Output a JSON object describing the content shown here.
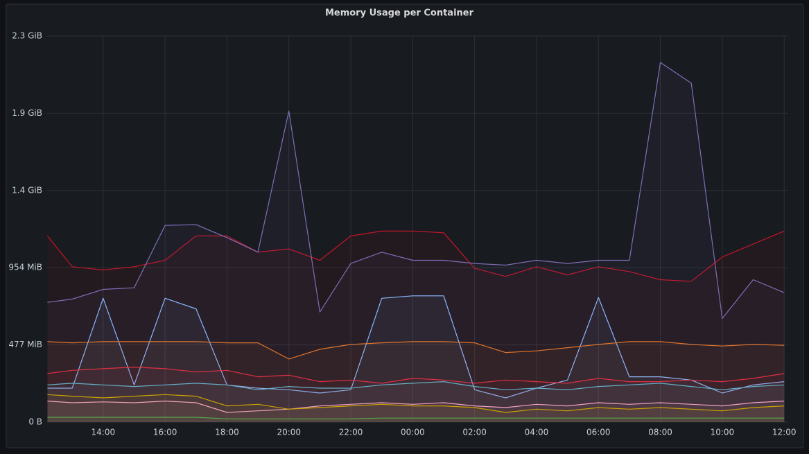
{
  "chart_data": {
    "type": "line",
    "title": "Memory Usage per Container",
    "x": [
      12.2,
      13,
      14,
      15,
      16,
      17,
      18,
      19,
      20,
      21,
      22,
      23,
      24,
      25,
      26,
      27,
      28,
      29,
      30,
      31,
      32,
      33,
      34,
      35,
      36
    ],
    "xlim": [
      12.19,
      36.13
    ],
    "xticks": [
      {
        "value": 14,
        "label": "14:00"
      },
      {
        "value": 16,
        "label": "16:00"
      },
      {
        "value": 18,
        "label": "18:00"
      },
      {
        "value": 20,
        "label": "20:00"
      },
      {
        "value": 22,
        "label": "22:00"
      },
      {
        "value": 24,
        "label": "00:00"
      },
      {
        "value": 26,
        "label": "02:00"
      },
      {
        "value": 28,
        "label": "04:00"
      },
      {
        "value": 30,
        "label": "06:00"
      },
      {
        "value": 32,
        "label": "08:00"
      },
      {
        "value": 34,
        "label": "10:00"
      },
      {
        "value": 36,
        "label": "12:00"
      }
    ],
    "ylim": [
      0,
      2385
    ],
    "yticks": [
      {
        "value": 0,
        "label": "0 B"
      },
      {
        "value": 477,
        "label": "477 MiB"
      },
      {
        "value": 954,
        "label": "954 MiB"
      },
      {
        "value": 1431,
        "label": "1.4 GiB"
      },
      {
        "value": 1908,
        "label": "1.9 GiB"
      },
      {
        "value": 2385,
        "label": "2.3 GiB"
      }
    ],
    "grid": true,
    "series": [
      {
        "color": "#c4162a",
        "values": [
          1150,
          960,
          940,
          960,
          1000,
          1150,
          1150,
          1050,
          1070,
          1000,
          1150,
          1180,
          1180,
          1170,
          950,
          900,
          960,
          910,
          960,
          930,
          880,
          870,
          1020,
          1100,
          1180
        ]
      },
      {
        "color": "#806eb7",
        "values": [
          740,
          760,
          820,
          830,
          1215,
          1220,
          1140,
          1050,
          1922,
          680,
          980,
          1050,
          1000,
          1000,
          980,
          970,
          1000,
          980,
          1000,
          1000,
          2222,
          2094,
          640,
          880,
          800
        ]
      },
      {
        "color": "#8ab8ff",
        "values": [
          210,
          210,
          765,
          230,
          765,
          700,
          230,
          210,
          200,
          180,
          200,
          765,
          780,
          780,
          200,
          150,
          210,
          260,
          770,
          280,
          280,
          260,
          180,
          230,
          250
        ]
      },
      {
        "color": "#e0752d",
        "values": [
          497,
          490,
          497,
          497,
          497,
          497,
          490,
          490,
          390,
          450,
          480,
          490,
          497,
          497,
          490,
          430,
          440,
          460,
          480,
          497,
          497,
          480,
          470,
          480,
          475
        ]
      },
      {
        "color": "#e02f44",
        "values": [
          300,
          320,
          330,
          340,
          330,
          310,
          320,
          280,
          290,
          250,
          260,
          240,
          270,
          260,
          240,
          260,
          250,
          240,
          270,
          250,
          250,
          260,
          250,
          270,
          300
        ]
      },
      {
        "color": "#64b0c8",
        "values": [
          230,
          240,
          230,
          220,
          230,
          240,
          230,
          200,
          220,
          210,
          210,
          230,
          240,
          250,
          220,
          200,
          210,
          200,
          220,
          230,
          240,
          220,
          200,
          220,
          230
        ]
      },
      {
        "color": "#f2a2c0",
        "values": [
          130,
          120,
          125,
          120,
          130,
          120,
          60,
          70,
          80,
          100,
          110,
          120,
          110,
          120,
          100,
          90,
          110,
          100,
          120,
          110,
          120,
          110,
          100,
          120,
          130
        ]
      },
      {
        "color": "#cca300",
        "values": [
          170,
          160,
          150,
          160,
          170,
          160,
          100,
          110,
          80,
          90,
          100,
          110,
          100,
          100,
          90,
          60,
          80,
          70,
          90,
          80,
          90,
          80,
          70,
          90,
          100
        ]
      },
      {
        "color": "#56a64b",
        "values": [
          30,
          30,
          30,
          30,
          30,
          30,
          20,
          20,
          20,
          20,
          20,
          25,
          25,
          25,
          25,
          25,
          25,
          25,
          25,
          25,
          25,
          25,
          25,
          25,
          25
        ]
      }
    ]
  }
}
